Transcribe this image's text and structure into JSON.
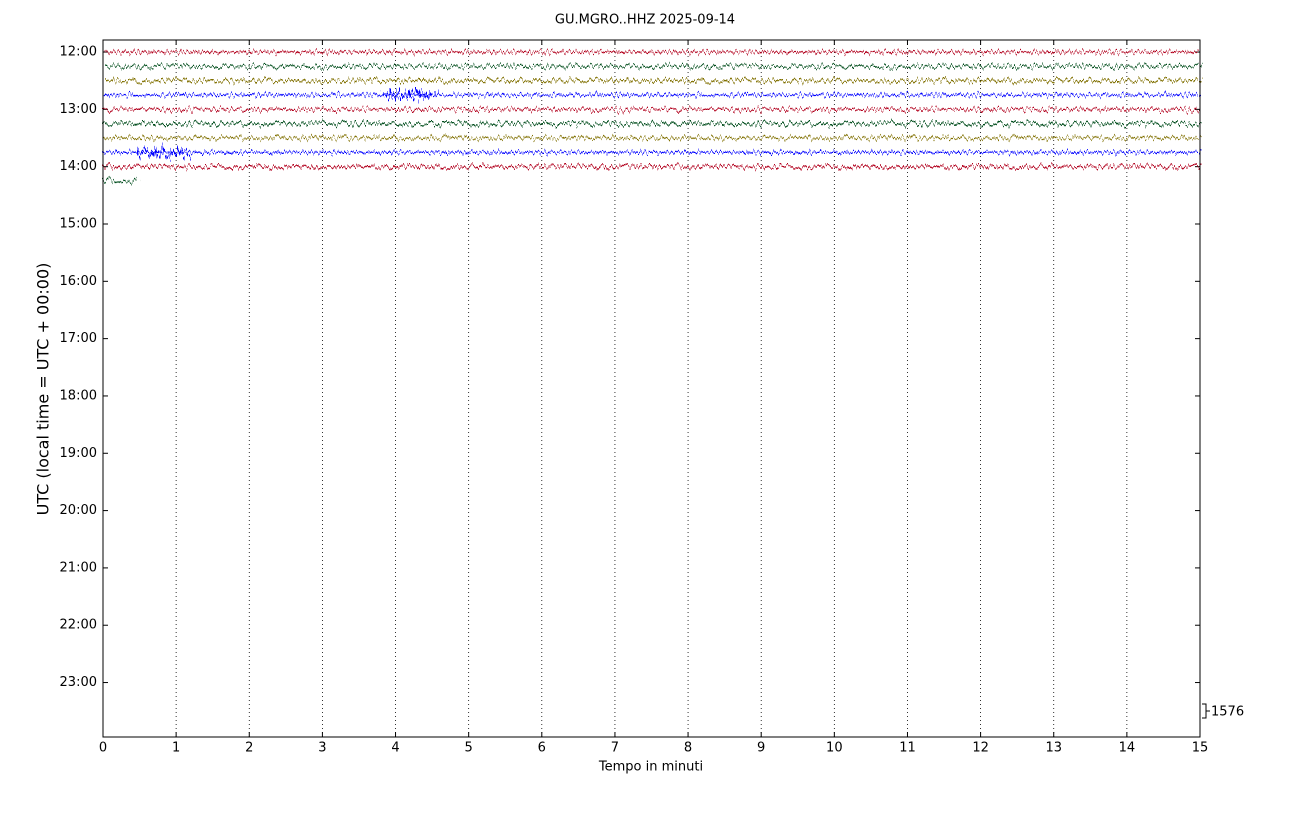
{
  "chart_data": {
    "type": "helicorder",
    "title": "GU.MGRO..HHZ 2025-09-14",
    "xlabel": "Tempo in minuti",
    "ylabel": "UTC (local time = UTC + 00:00)",
    "xlim": [
      0,
      15
    ],
    "xticks": [
      0,
      1,
      2,
      3,
      4,
      5,
      6,
      7,
      8,
      9,
      10,
      11,
      12,
      13,
      14,
      15
    ],
    "ylim": [
      11.79,
      23.95
    ],
    "yticks": [
      {
        "value": 12,
        "label": "12:00"
      },
      {
        "value": 13,
        "label": "13:00"
      },
      {
        "value": 14,
        "label": "14:00"
      },
      {
        "value": 15,
        "label": "15:00"
      },
      {
        "value": 16,
        "label": "16:00"
      },
      {
        "value": 17,
        "label": "17:00"
      },
      {
        "value": 18,
        "label": "18:00"
      },
      {
        "value": 19,
        "label": "19:00"
      },
      {
        "value": 20,
        "label": "20:00"
      },
      {
        "value": 21,
        "label": "21:00"
      },
      {
        "value": 22,
        "label": "22:00"
      },
      {
        "value": 23,
        "label": "23:00"
      }
    ],
    "grid": true,
    "traces": [
      {
        "y": 12,
        "x": [
          0,
          15
        ],
        "color": "#b2001f"
      },
      {
        "y": 12.25,
        "x": [
          0,
          15
        ],
        "color": "#004d1a"
      },
      {
        "y": 12.5,
        "x": [
          0,
          15
        ],
        "color": "#807000"
      },
      {
        "y": 12.75,
        "x": [
          0,
          15
        ],
        "color": "#0000ff"
      },
      {
        "y": 13,
        "x": [
          0,
          15
        ],
        "color": "#b2001f"
      },
      {
        "y": 13.25,
        "x": [
          0,
          15
        ],
        "color": "#004d1a"
      },
      {
        "y": 13.5,
        "x": [
          0,
          15
        ],
        "color": "#807000"
      },
      {
        "y": 13.75,
        "x": [
          0,
          15
        ],
        "color": "#0000ff"
      },
      {
        "y": 14,
        "x": [
          0,
          15
        ],
        "color": "#b2001f"
      },
      {
        "y": 14.25,
        "x": [
          0,
          0.5
        ],
        "color": "#004d1a"
      }
    ],
    "events": [
      {
        "y": 12.75,
        "x": 4.1,
        "color": "#0000ff"
      },
      {
        "y": 13.75,
        "x": 0.75,
        "color": "#0000ff"
      }
    ],
    "scale": 1576
  }
}
